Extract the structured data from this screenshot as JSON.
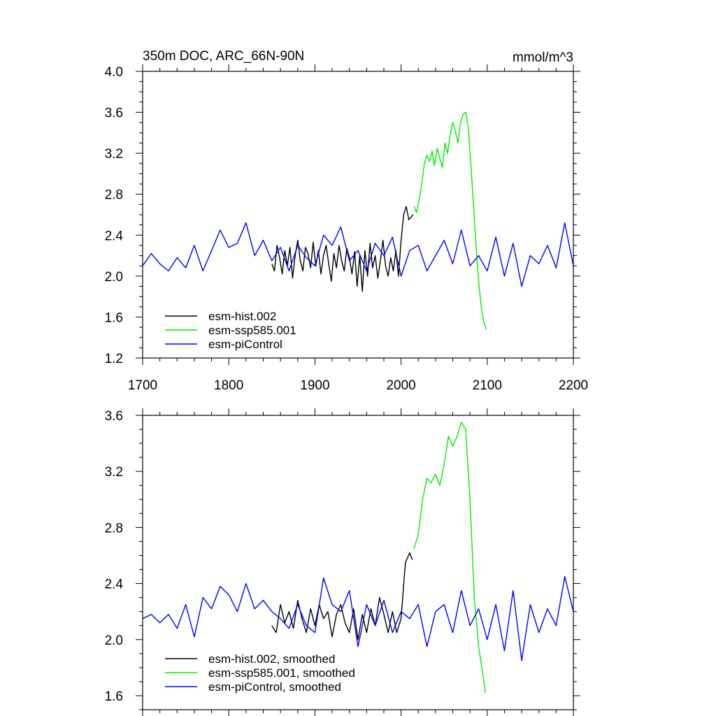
{
  "chart_data": [
    {
      "type": "line",
      "title_left": "350m DOC, ARC_66N-90N",
      "title_right": "mmol/m^3",
      "xlim": [
        1700,
        2200
      ],
      "ylim": [
        1.2,
        4.0
      ],
      "xticks": [
        1700,
        1800,
        1900,
        2000,
        2100,
        2200
      ],
      "xtick_labels": [
        "1700",
        "1800",
        "1900",
        "2000",
        "2100",
        "2200"
      ],
      "yticks": [
        1.2,
        1.6,
        2.0,
        2.4,
        2.8,
        3.2,
        3.6,
        4.0
      ],
      "ytick_labels": [
        "1.2",
        "1.6",
        "2.0",
        "2.4",
        "2.8",
        "3.2",
        "3.6",
        "4.0"
      ],
      "legend_position": "bottom-left",
      "series": [
        {
          "name": "esm-hist.002",
          "color": "#000000",
          "x": [
            1850,
            1853,
            1856,
            1859,
            1862,
            1865,
            1868,
            1871,
            1874,
            1877,
            1880,
            1883,
            1886,
            1889,
            1892,
            1895,
            1898,
            1901,
            1904,
            1907,
            1910,
            1913,
            1916,
            1919,
            1922,
            1925,
            1928,
            1931,
            1934,
            1937,
            1940,
            1943,
            1946,
            1949,
            1952,
            1955,
            1958,
            1961,
            1964,
            1967,
            1970,
            1973,
            1976,
            1979,
            1982,
            1985,
            1988,
            1991,
            1994,
            1997,
            2000,
            2003,
            2006,
            2009,
            2012,
            2014
          ],
          "y": [
            2.12,
            2.05,
            2.3,
            2.18,
            2.02,
            2.25,
            2.1,
            2.28,
            1.98,
            2.2,
            2.35,
            2.15,
            2.05,
            2.28,
            2.22,
            2.08,
            2.33,
            2.1,
            2.25,
            2.02,
            2.2,
            2.3,
            2.12,
            1.95,
            2.22,
            2.08,
            2.3,
            2.15,
            2.05,
            2.27,
            2.18,
            2.02,
            2.24,
            1.9,
            2.2,
            1.85,
            2.25,
            2.0,
            2.32,
            2.08,
            2.2,
            1.98,
            2.15,
            2.35,
            2.1,
            2.0,
            2.18,
            2.05,
            2.25,
            2.0,
            2.35,
            2.6,
            2.68,
            2.55,
            2.58,
            2.6
          ]
        },
        {
          "name": "esm-ssp585.001",
          "color": "#00ee00",
          "x": [
            2015,
            2018,
            2021,
            2024,
            2027,
            2030,
            2033,
            2036,
            2039,
            2042,
            2045,
            2048,
            2051,
            2054,
            2057,
            2060,
            2063,
            2066,
            2069,
            2072,
            2075,
            2078,
            2081,
            2084,
            2087,
            2090,
            2093,
            2096,
            2099
          ],
          "y": [
            2.68,
            2.62,
            2.75,
            2.9,
            3.1,
            3.18,
            3.12,
            3.22,
            3.08,
            3.25,
            3.15,
            3.06,
            3.3,
            3.2,
            3.38,
            3.5,
            3.42,
            3.3,
            3.5,
            3.58,
            3.6,
            3.45,
            3.1,
            2.7,
            2.3,
            1.95,
            1.7,
            1.55,
            1.48
          ]
        },
        {
          "name": "esm-piControl",
          "color": "#0000ff",
          "x": [
            1700,
            1710,
            1720,
            1730,
            1740,
            1750,
            1760,
            1770,
            1780,
            1790,
            1800,
            1810,
            1820,
            1830,
            1840,
            1850,
            1860,
            1870,
            1880,
            1890,
            1900,
            1910,
            1920,
            1930,
            1940,
            1950,
            1960,
            1970,
            1980,
            1990,
            2000,
            2010,
            2020,
            2030,
            2040,
            2050,
            2060,
            2070,
            2080,
            2090,
            2100,
            2110,
            2120,
            2130,
            2140,
            2150,
            2160,
            2170,
            2180,
            2190,
            2200
          ],
          "y": [
            2.1,
            2.22,
            2.12,
            2.05,
            2.18,
            2.08,
            2.3,
            2.05,
            2.25,
            2.45,
            2.28,
            2.32,
            2.52,
            2.2,
            2.35,
            2.15,
            2.28,
            2.05,
            2.3,
            2.18,
            2.1,
            2.4,
            2.3,
            2.48,
            2.15,
            2.25,
            2.05,
            2.32,
            2.2,
            2.38,
            2.0,
            2.25,
            2.3,
            2.05,
            2.2,
            2.35,
            2.12,
            2.45,
            2.1,
            2.2,
            2.05,
            2.38,
            2.0,
            2.32,
            1.9,
            2.2,
            2.12,
            2.3,
            2.08,
            2.52,
            2.1
          ]
        }
      ]
    },
    {
      "type": "line",
      "xlim": [
        1700,
        2200
      ],
      "ylim": [
        1.5,
        3.6
      ],
      "xticks": [
        1700,
        1800,
        1900,
        2000,
        2100,
        2200
      ],
      "yticks": [
        1.6,
        2.0,
        2.4,
        2.8,
        3.2,
        3.6
      ],
      "ytick_labels": [
        "1.6",
        "2.0",
        "2.4",
        "2.8",
        "3.2",
        "3.6"
      ],
      "legend_position": "bottom-left",
      "series": [
        {
          "name": "esm-hist.002, smoothed",
          "color": "#000000",
          "x": [
            1850,
            1855,
            1860,
            1865,
            1870,
            1875,
            1880,
            1885,
            1890,
            1895,
            1900,
            1905,
            1910,
            1915,
            1920,
            1925,
            1930,
            1935,
            1940,
            1945,
            1950,
            1955,
            1960,
            1965,
            1970,
            1975,
            1980,
            1985,
            1990,
            1995,
            2000,
            2005,
            2010,
            2013
          ],
          "y": [
            2.1,
            2.05,
            2.25,
            2.12,
            2.2,
            2.08,
            2.28,
            2.15,
            2.05,
            2.22,
            2.1,
            2.25,
            2.15,
            2.2,
            2.02,
            2.18,
            2.25,
            2.12,
            2.05,
            2.22,
            2.0,
            2.18,
            2.05,
            2.22,
            2.1,
            2.3,
            2.18,
            2.05,
            2.2,
            2.05,
            2.15,
            2.55,
            2.62,
            2.57
          ]
        },
        {
          "name": "esm-ssp585.001, smoothed",
          "color": "#00ee00",
          "x": [
            2015,
            2020,
            2025,
            2030,
            2035,
            2040,
            2045,
            2050,
            2055,
            2060,
            2065,
            2070,
            2075,
            2080,
            2085,
            2090,
            2095,
            2098
          ],
          "y": [
            2.65,
            2.75,
            3.0,
            3.15,
            3.12,
            3.18,
            3.1,
            3.25,
            3.45,
            3.38,
            3.45,
            3.55,
            3.5,
            3.0,
            2.3,
            1.95,
            1.75,
            1.62
          ]
        },
        {
          "name": "esm-piControl, smoothed",
          "color": "#0000ff",
          "x": [
            1700,
            1710,
            1720,
            1730,
            1740,
            1750,
            1760,
            1770,
            1780,
            1790,
            1800,
            1810,
            1820,
            1830,
            1840,
            1850,
            1860,
            1870,
            1880,
            1890,
            1900,
            1910,
            1920,
            1930,
            1940,
            1950,
            1960,
            1970,
            1980,
            1990,
            2000,
            2010,
            2020,
            2030,
            2040,
            2050,
            2060,
            2070,
            2080,
            2090,
            2100,
            2110,
            2120,
            2130,
            2140,
            2150,
            2160,
            2170,
            2180,
            2190,
            2200
          ],
          "y": [
            2.15,
            2.18,
            2.12,
            2.18,
            2.08,
            2.25,
            2.02,
            2.3,
            2.22,
            2.38,
            2.32,
            2.2,
            2.4,
            2.22,
            2.28,
            2.2,
            2.15,
            2.08,
            2.25,
            2.1,
            2.05,
            2.44,
            2.25,
            2.2,
            2.35,
            1.95,
            2.25,
            2.1,
            2.28,
            2.05,
            2.2,
            2.15,
            2.25,
            1.95,
            2.2,
            2.25,
            2.05,
            2.35,
            2.1,
            2.22,
            2.0,
            2.25,
            1.92,
            2.35,
            1.85,
            2.25,
            2.05,
            2.22,
            2.1,
            2.45,
            2.2
          ]
        }
      ]
    }
  ]
}
